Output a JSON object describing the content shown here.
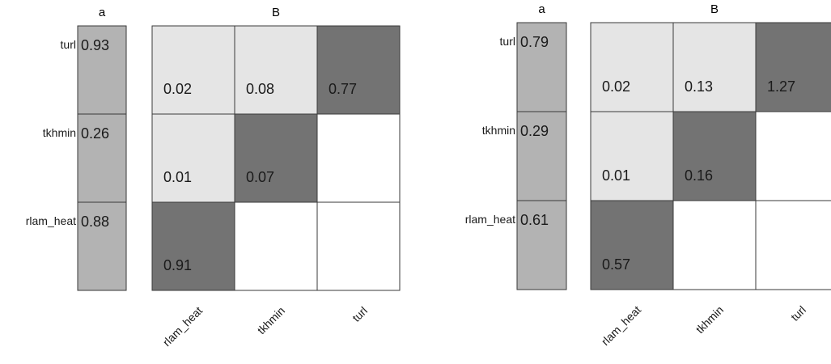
{
  "chart_data": [
    {
      "type": "heatmap",
      "title_a": "a",
      "title_b": "B",
      "rows": [
        "turl",
        "tkhmin",
        "rlam_heat"
      ],
      "columns": [
        "rlam_heat",
        "tkhmin",
        "turl"
      ],
      "a_values": [
        "0.93",
        "0.26",
        "0.88"
      ],
      "b_matrix": [
        [
          "0.02",
          "0.08",
          "0.77"
        ],
        [
          "0.01",
          "0.07",
          null
        ],
        [
          "0.91",
          null,
          null
        ]
      ],
      "colors": {
        "a_fill": "#b3b3b3",
        "light": "#e5e5e5",
        "dark": "#737373",
        "empty": "#ffffff"
      }
    },
    {
      "type": "heatmap",
      "title_a": "a",
      "title_b": "B",
      "rows": [
        "turl",
        "tkhmin",
        "rlam_heat"
      ],
      "columns": [
        "rlam_heat",
        "tkhmin",
        "turl"
      ],
      "a_values": [
        "0.79",
        "0.29",
        "0.61"
      ],
      "b_matrix": [
        [
          "0.02",
          "0.13",
          "1.27"
        ],
        [
          "0.01",
          "0.16",
          null
        ],
        [
          "0.57",
          null,
          null
        ]
      ],
      "colors": {
        "a_fill": "#b3b3b3",
        "light": "#e5e5e5",
        "dark": "#737373",
        "empty": "#ffffff"
      }
    }
  ]
}
